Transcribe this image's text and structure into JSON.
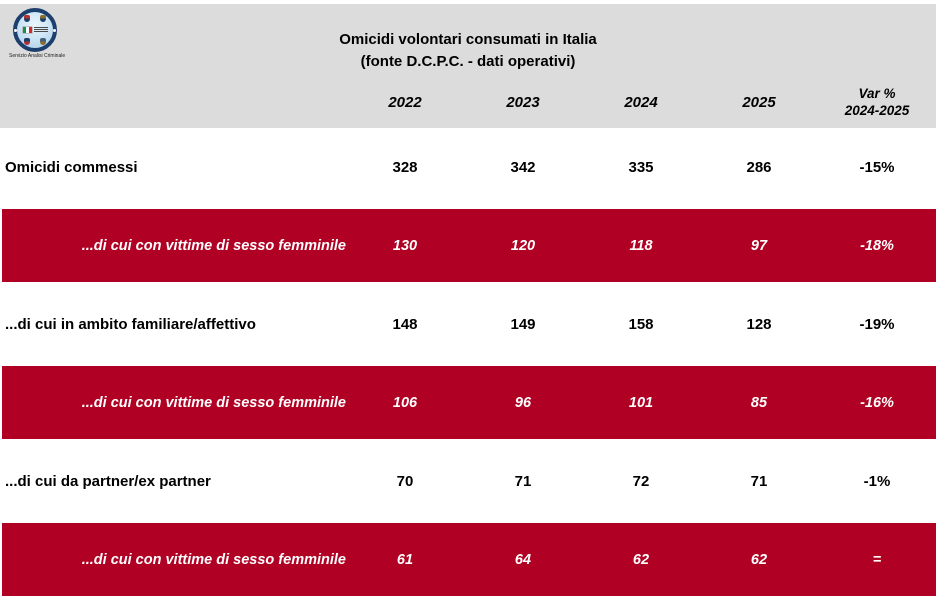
{
  "header": {
    "logo_caption": "Servizio Analisi Criminale",
    "title_line1": "Omicidi volontari consumati in Italia",
    "title_line2": "(fonte D.C.P.C. - dati operativi)"
  },
  "columns": {
    "years": [
      "2022",
      "2023",
      "2024",
      "2025"
    ],
    "var_line1": "Var %",
    "var_line2": "2024-2025"
  },
  "colors": {
    "highlight_red": "#b00023",
    "header_gray": "#dcdcdc",
    "logo_navy": "#1d3f6e",
    "text_on_highlight": "#ffffff"
  },
  "chart_data": {
    "type": "table",
    "title": "Omicidi volontari consumati in Italia (fonte D.C.P.C. - dati operativi)",
    "columns": [
      "2022",
      "2023",
      "2024",
      "2025",
      "Var % 2024-2025"
    ],
    "rows": [
      {
        "label": "Omicidi commessi",
        "values": [
          328,
          342,
          335,
          286
        ],
        "var": "-15%",
        "highlighted": false
      },
      {
        "label": "...di cui con vittime di sesso femminile",
        "values": [
          130,
          120,
          118,
          97
        ],
        "var": "-18%",
        "highlighted": true
      },
      {
        "label": "...di cui in ambito familiare/affettivo",
        "values": [
          148,
          149,
          158,
          128
        ],
        "var": "-19%",
        "highlighted": false
      },
      {
        "label": "...di cui con vittime di sesso femminile",
        "values": [
          106,
          96,
          101,
          85
        ],
        "var": "-16%",
        "highlighted": true
      },
      {
        "label": "...di cui da partner/ex partner",
        "values": [
          70,
          71,
          72,
          71
        ],
        "var": "-1%",
        "highlighted": false
      },
      {
        "label": "...di cui con vittime di sesso femminile",
        "values": [
          61,
          64,
          62,
          62
        ],
        "var": "=",
        "highlighted": true
      }
    ]
  }
}
